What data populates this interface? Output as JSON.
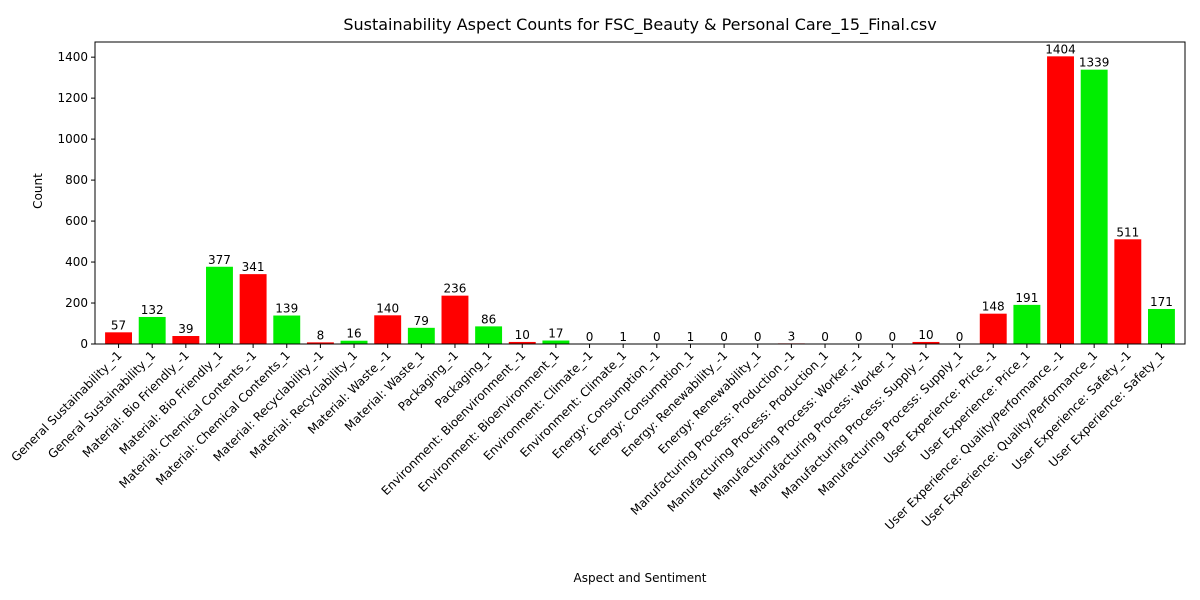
{
  "chart_data": {
    "type": "bar",
    "title": "Sustainability Aspect Counts for FSC_Beauty & Personal Care_15_Final.csv",
    "xlabel": "Aspect and Sentiment",
    "ylabel": "Count",
    "ylim": [
      0,
      1474
    ],
    "yticks": [
      0,
      200,
      400,
      600,
      800,
      1000,
      1200,
      1400
    ],
    "grid": false,
    "legend": "none",
    "colors": {
      "negative": "#ff0000",
      "positive": "#00ee00"
    },
    "categories": [
      "General Sustainability_-1",
      "General Sustainability_1",
      "Material: Bio Friendly_-1",
      "Material: Bio Friendly_1",
      "Material: Chemical Contents_-1",
      "Material: Chemical Contents_1",
      "Material: Recyclability_-1",
      "Material: Recyclability_1",
      "Material: Waste_-1",
      "Material: Waste_1",
      "Packaging_-1",
      "Packaging_1",
      "Environment: Bioenvironment_-1",
      "Environment: Bioenvironment_1",
      "Environment: Climate_-1",
      "Environment: Climate_1",
      "Energy: Consumption_-1",
      "Energy: Consumption_1",
      "Energy: Renewability_-1",
      "Energy: Renewability_1",
      "Manufacturing Process: Production_-1",
      "Manufacturing Process: Production_1",
      "Manufacturing Process: Worker_-1",
      "Manufacturing Process: Worker_1",
      "Manufacturing Process: Supply_-1",
      "Manufacturing Process: Supply_1",
      "User Experience: Price_-1",
      "User Experience: Price_1",
      "User Experience: Quality/Performance_-1",
      "User Experience: Quality/Performance_1",
      "User Experience: Safety_-1",
      "User Experience: Safety_1"
    ],
    "values": [
      57,
      132,
      39,
      377,
      341,
      139,
      8,
      16,
      140,
      79,
      236,
      86,
      10,
      17,
      0,
      1,
      0,
      1,
      0,
      0,
      3,
      0,
      0,
      0,
      10,
      0,
      148,
      191,
      1404,
      1339,
      511,
      171
    ]
  }
}
